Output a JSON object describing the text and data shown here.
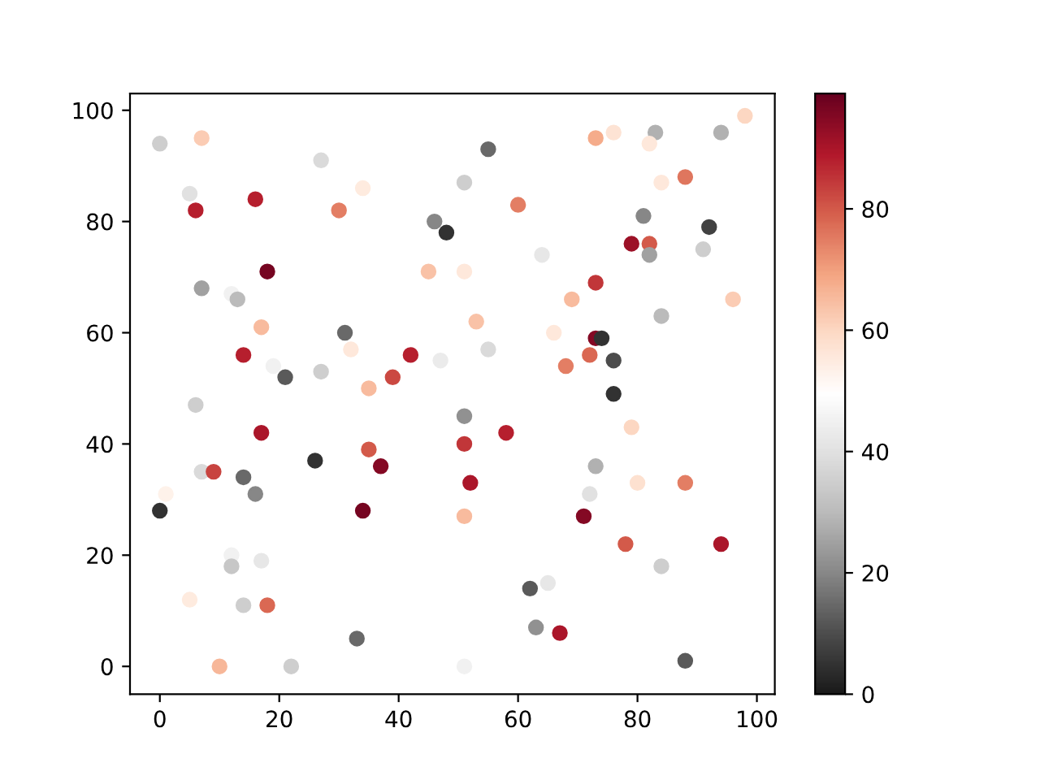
{
  "chart_data": {
    "type": "scatter",
    "xlim": [
      -5,
      103
    ],
    "ylim": [
      -5,
      103
    ],
    "xticks": [
      0,
      20,
      40,
      60,
      80,
      100
    ],
    "yticks": [
      0,
      20,
      40,
      60,
      80,
      100
    ],
    "clim": [
      0,
      99
    ],
    "cticks": [
      0,
      20,
      40,
      60,
      80
    ],
    "grid": false,
    "marker": "circle",
    "series": [
      {
        "x": [
          0,
          7,
          5,
          6,
          16,
          27,
          30,
          34,
          48,
          46,
          51,
          55,
          60,
          51,
          45,
          64,
          73,
          76,
          83,
          82,
          84,
          88,
          94,
          98,
          81,
          79,
          82,
          82,
          91,
          92,
          18,
          7,
          12,
          13,
          17,
          31,
          32,
          14,
          19,
          21,
          27,
          35,
          39,
          42,
          47,
          53,
          55,
          66,
          69,
          68,
          72,
          73,
          74,
          73,
          76,
          76,
          84,
          96,
          6,
          17,
          51,
          51,
          58,
          35,
          37,
          26,
          7,
          9,
          14,
          16,
          34,
          0,
          1,
          52,
          51,
          73,
          72,
          79,
          80,
          88,
          71,
          78,
          84,
          94,
          12,
          12,
          17,
          5,
          14,
          18,
          10,
          22,
          33,
          51,
          62,
          65,
          63,
          67,
          88
        ],
        "values": [
          94,
          95,
          85,
          82,
          84,
          91,
          82,
          86,
          78,
          80,
          87,
          93,
          83,
          71,
          71,
          74,
          95,
          96,
          96,
          94,
          87,
          88,
          96,
          99,
          81,
          76,
          76,
          74,
          75,
          79,
          71,
          68,
          67,
          66,
          61,
          60,
          57,
          56,
          54,
          52,
          53,
          50,
          52,
          56,
          55,
          62,
          57,
          60,
          66,
          54,
          56,
          59,
          59,
          69,
          55,
          49,
          63,
          66,
          47,
          42,
          45,
          40,
          42,
          39,
          36,
          37,
          35,
          35,
          34,
          31,
          28,
          28,
          31,
          33,
          27,
          36,
          31,
          43,
          33,
          33,
          27,
          22,
          18,
          22,
          20,
          18,
          19,
          12,
          11,
          11,
          0,
          0,
          5,
          0,
          14,
          15,
          7,
          6,
          1
        ],
        "cvalues": [
          35,
          62,
          40,
          88,
          88,
          38,
          75,
          55,
          5,
          20,
          35,
          15,
          75,
          56,
          64,
          42,
          68,
          57,
          28,
          56,
          56,
          76,
          28,
          60,
          20,
          92,
          80,
          25,
          35,
          8,
          97,
          25,
          45,
          30,
          65,
          15,
          56,
          88,
          45,
          12,
          35,
          65,
          82,
          88,
          43,
          64,
          38,
          56,
          65,
          75,
          78,
          95,
          5,
          85,
          10,
          5,
          30,
          62,
          35,
          90,
          22,
          85,
          88,
          80,
          95,
          5,
          38,
          83,
          15,
          20,
          97,
          5,
          53,
          90,
          65,
          28,
          40,
          60,
          58,
          75,
          95,
          80,
          35,
          90,
          45,
          33,
          42,
          55,
          35,
          78,
          66,
          35,
          15,
          45,
          12,
          42,
          22,
          90,
          12
        ]
      }
    ]
  }
}
